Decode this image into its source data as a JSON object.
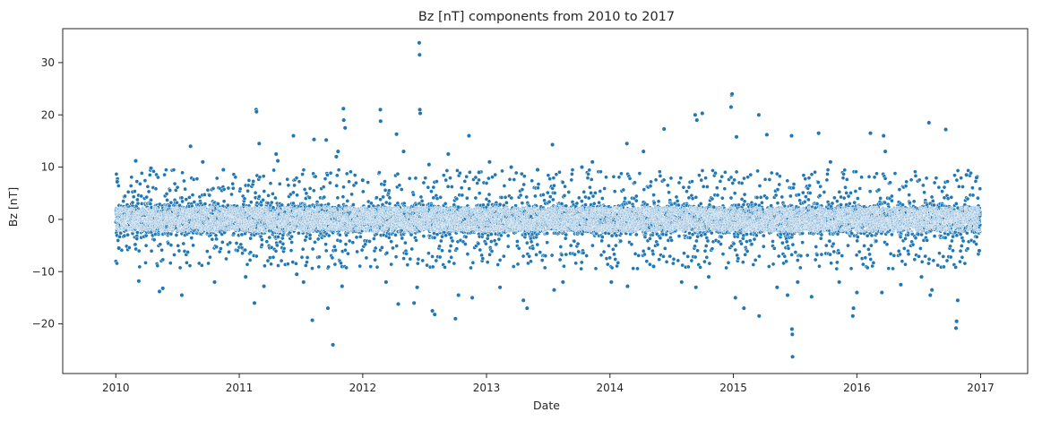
{
  "chart_data": {
    "type": "scatter",
    "title": "Bz [nT] components from 2010 to 2017",
    "xlabel": "Date",
    "ylabel": "Bz [nT]",
    "xlim": [
      "2009-07-28",
      "2017-05-20"
    ],
    "ylim": [
      -29.5,
      36.5
    ],
    "x_ticks": [
      "2010",
      "2011",
      "2012",
      "2013",
      "2014",
      "2015",
      "2016",
      "2017"
    ],
    "y_ticks": [
      -20,
      -10,
      0,
      10,
      20,
      30
    ],
    "y_tick_labels": [
      "−20",
      "−10",
      "0",
      "10",
      "20",
      "30"
    ],
    "grid": false,
    "legend": "none",
    "point_color": "#1f77b4",
    "point_edge_color": "#ffffff",
    "series": [
      {
        "points": [
          [
            "2010-01-05",
            7.2
          ],
          [
            "2010-01-10",
            -5.5
          ],
          [
            "2010-03-01",
            11.2
          ],
          [
            "2010-03-10",
            -11.8
          ],
          [
            "2010-04-15",
            9.8
          ],
          [
            "2010-05-10",
            -13.8
          ],
          [
            "2010-05-20",
            -13.2
          ],
          [
            "2010-07-15",
            -14.5
          ],
          [
            "2010-08-10",
            14.0
          ],
          [
            "2010-09-15",
            11.0
          ],
          [
            "2010-10-20",
            -12.0
          ],
          [
            "2010-11-15",
            9.5
          ],
          [
            "2011-01-20",
            -11.0
          ],
          [
            "2011-02-15",
            -16.0
          ],
          [
            "2011-02-20",
            21.0
          ],
          [
            "2011-02-21",
            20.6
          ],
          [
            "2011-03-01",
            14.5
          ],
          [
            "2011-03-15",
            -12.8
          ],
          [
            "2011-04-20",
            12.5
          ],
          [
            "2011-04-25",
            11.2
          ],
          [
            "2011-06-10",
            16.0
          ],
          [
            "2011-06-20",
            -10.5
          ],
          [
            "2011-07-10",
            -12.0
          ],
          [
            "2011-08-05",
            -19.3
          ],
          [
            "2011-08-10",
            15.3
          ],
          [
            "2011-09-15",
            15.2
          ],
          [
            "2011-09-20",
            -17.0
          ],
          [
            "2011-10-05",
            -24.0
          ],
          [
            "2011-10-15",
            12.0
          ],
          [
            "2011-10-20",
            13.0
          ],
          [
            "2011-11-01",
            -12.8
          ],
          [
            "2011-11-05",
            21.2
          ],
          [
            "2011-11-06",
            19.0
          ],
          [
            "2011-11-10",
            17.5
          ],
          [
            "2012-01-01",
            7.5
          ],
          [
            "2012-02-22",
            21.0
          ],
          [
            "2012-02-23",
            18.8
          ],
          [
            "2012-03-10",
            -12.0
          ],
          [
            "2012-04-10",
            16.3
          ],
          [
            "2012-04-15",
            -16.2
          ],
          [
            "2012-05-01",
            13.0
          ],
          [
            "2012-06-01",
            -16.0
          ],
          [
            "2012-06-10",
            -13.0
          ],
          [
            "2012-06-16",
            33.8
          ],
          [
            "2012-06-17",
            31.5
          ],
          [
            "2012-06-18",
            21.0
          ],
          [
            "2012-06-19",
            20.3
          ],
          [
            "2012-07-15",
            10.5
          ],
          [
            "2012-07-25",
            -17.5
          ],
          [
            "2012-08-01",
            -18.2
          ],
          [
            "2012-09-10",
            12.5
          ],
          [
            "2012-10-01",
            -19.0
          ],
          [
            "2012-10-10",
            -14.5
          ],
          [
            "2012-11-10",
            16.0
          ],
          [
            "2012-11-20",
            -15.0
          ],
          [
            "2012-12-10",
            9.0
          ],
          [
            "2013-01-10",
            11.0
          ],
          [
            "2013-02-10",
            -13.0
          ],
          [
            "2013-03-15",
            10.0
          ],
          [
            "2013-04-20",
            -15.5
          ],
          [
            "2013-05-01",
            -17.0
          ],
          [
            "2013-06-01",
            9.5
          ],
          [
            "2013-07-15",
            14.3
          ],
          [
            "2013-07-20",
            -13.5
          ],
          [
            "2013-08-15",
            -12.0
          ],
          [
            "2013-10-10",
            10.0
          ],
          [
            "2013-11-10",
            11.0
          ],
          [
            "2014-01-05",
            -12.0
          ],
          [
            "2014-02-20",
            14.5
          ],
          [
            "2014-02-22",
            -12.8
          ],
          [
            "2014-04-10",
            13.0
          ],
          [
            "2014-05-10",
            -9.0
          ],
          [
            "2014-06-10",
            17.3
          ],
          [
            "2014-08-01",
            -12.0
          ],
          [
            "2014-09-10",
            20.0
          ],
          [
            "2014-09-12",
            -13.0
          ],
          [
            "2014-09-15",
            19.0
          ],
          [
            "2014-10-01",
            20.3
          ],
          [
            "2014-10-20",
            -11.0
          ],
          [
            "2014-12-25",
            21.5
          ],
          [
            "2014-12-27",
            23.8
          ],
          [
            "2014-12-28",
            24.0
          ],
          [
            "2015-01-07",
            -15.0
          ],
          [
            "2015-01-10",
            15.8
          ],
          [
            "2015-02-01",
            -17.0
          ],
          [
            "2015-03-17",
            20.0
          ],
          [
            "2015-03-18",
            -18.5
          ],
          [
            "2015-04-10",
            16.2
          ],
          [
            "2015-05-10",
            -13.0
          ],
          [
            "2015-06-10",
            -14.5
          ],
          [
            "2015-06-22",
            16.0
          ],
          [
            "2015-06-23",
            -21.0
          ],
          [
            "2015-06-24",
            -22.0
          ],
          [
            "2015-06-25",
            -26.3
          ],
          [
            "2015-07-10",
            -12.0
          ],
          [
            "2015-08-20",
            -14.8
          ],
          [
            "2015-09-10",
            16.5
          ],
          [
            "2015-10-15",
            11.0
          ],
          [
            "2015-11-10",
            -12.0
          ],
          [
            "2015-12-20",
            -18.5
          ],
          [
            "2015-12-22",
            -17.0
          ],
          [
            "2016-01-01",
            -14.0
          ],
          [
            "2016-02-10",
            16.5
          ],
          [
            "2016-03-15",
            -14.0
          ],
          [
            "2016-03-20",
            16.0
          ],
          [
            "2016-03-25",
            13.0
          ],
          [
            "2016-05-10",
            -12.5
          ],
          [
            "2016-07-10",
            -11.0
          ],
          [
            "2016-08-01",
            18.5
          ],
          [
            "2016-08-05",
            -14.5
          ],
          [
            "2016-08-10",
            -13.5
          ],
          [
            "2016-09-20",
            17.2
          ],
          [
            "2016-10-20",
            -20.8
          ],
          [
            "2016-10-22",
            -19.5
          ],
          [
            "2016-10-25",
            -15.5
          ],
          [
            "2016-11-20",
            8.5
          ],
          [
            "2016-12-20",
            8.0
          ],
          [
            "2016-12-28",
            -6.0
          ]
        ]
      }
    ]
  }
}
